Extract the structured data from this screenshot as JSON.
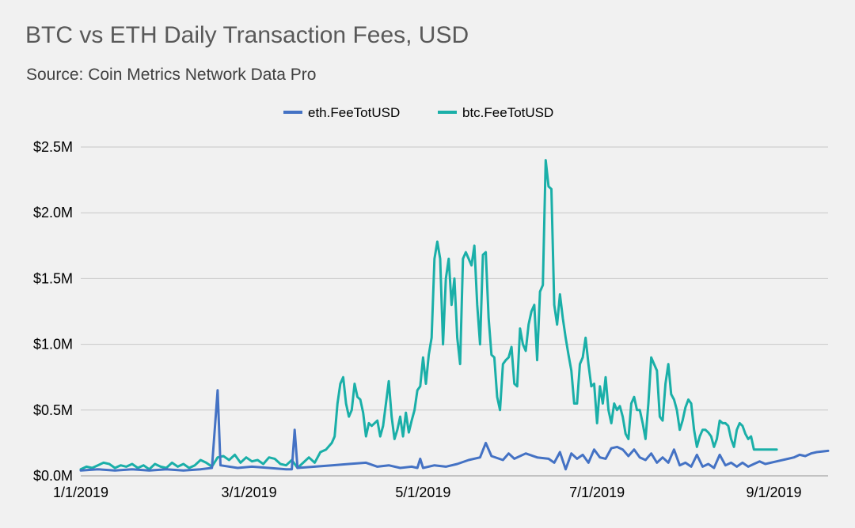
{
  "chart_data": {
    "type": "line",
    "title": "BTC vs ETH Daily Transaction Fees, USD",
    "subtitle": "Source: Coin Metrics Network Data Pro",
    "xlabel": "",
    "ylabel": "",
    "x_range": [
      "1/1/2019",
      "9/12/2019"
    ],
    "x_tick_labels": [
      "1/1/2019",
      "3/1/2019",
      "5/1/2019",
      "7/1/2019",
      "9/1/2019"
    ],
    "x_tick_days": [
      0,
      59,
      120,
      181,
      243
    ],
    "ylim": [
      0,
      2.5
    ],
    "y_units": "$M",
    "y_ticks": [
      0,
      0.5,
      1.0,
      1.5,
      2.0,
      2.5
    ],
    "y_tick_labels": [
      "$0.0M",
      "$0.5M",
      "$1.0M",
      "$1.5M",
      "$2.0M",
      "$2.5M"
    ],
    "grid": true,
    "legend_position": "top-center",
    "series": [
      {
        "name": "eth.FeeTotUSD",
        "color": "#4472c4",
        "points": [
          [
            0,
            0.04
          ],
          [
            6,
            0.05
          ],
          [
            12,
            0.04
          ],
          [
            18,
            0.05
          ],
          [
            24,
            0.04
          ],
          [
            30,
            0.05
          ],
          [
            36,
            0.04
          ],
          [
            42,
            0.05
          ],
          [
            46,
            0.06
          ],
          [
            48,
            0.65
          ],
          [
            49,
            0.08
          ],
          [
            55,
            0.06
          ],
          [
            60,
            0.07
          ],
          [
            66,
            0.06
          ],
          [
            72,
            0.05
          ],
          [
            74,
            0.05
          ],
          [
            75,
            0.35
          ],
          [
            76,
            0.06
          ],
          [
            82,
            0.07
          ],
          [
            88,
            0.08
          ],
          [
            94,
            0.09
          ],
          [
            100,
            0.1
          ],
          [
            104,
            0.07
          ],
          [
            108,
            0.08
          ],
          [
            112,
            0.06
          ],
          [
            116,
            0.07
          ],
          [
            118,
            0.06
          ],
          [
            119,
            0.13
          ],
          [
            120,
            0.06
          ],
          [
            124,
            0.08
          ],
          [
            128,
            0.07
          ],
          [
            132,
            0.09
          ],
          [
            136,
            0.12
          ],
          [
            140,
            0.14
          ],
          [
            142,
            0.25
          ],
          [
            144,
            0.15
          ],
          [
            148,
            0.12
          ],
          [
            150,
            0.17
          ],
          [
            152,
            0.13
          ],
          [
            156,
            0.17
          ],
          [
            160,
            0.14
          ],
          [
            164,
            0.13
          ],
          [
            166,
            0.1
          ],
          [
            168,
            0.18
          ],
          [
            170,
            0.05
          ],
          [
            172,
            0.17
          ],
          [
            174,
            0.13
          ],
          [
            176,
            0.16
          ],
          [
            178,
            0.1
          ],
          [
            180,
            0.2
          ],
          [
            182,
            0.14
          ],
          [
            184,
            0.13
          ],
          [
            186,
            0.21
          ],
          [
            188,
            0.22
          ],
          [
            190,
            0.2
          ],
          [
            192,
            0.15
          ],
          [
            194,
            0.2
          ],
          [
            196,
            0.14
          ],
          [
            198,
            0.12
          ],
          [
            200,
            0.17
          ],
          [
            202,
            0.1
          ],
          [
            204,
            0.14
          ],
          [
            206,
            0.1
          ],
          [
            208,
            0.2
          ],
          [
            210,
            0.08
          ],
          [
            212,
            0.1
          ],
          [
            214,
            0.07
          ],
          [
            216,
            0.16
          ],
          [
            218,
            0.07
          ],
          [
            220,
            0.09
          ],
          [
            222,
            0.06
          ],
          [
            224,
            0.16
          ],
          [
            226,
            0.08
          ],
          [
            228,
            0.1
          ],
          [
            230,
            0.07
          ],
          [
            232,
            0.1
          ],
          [
            234,
            0.07
          ],
          [
            236,
            0.09
          ],
          [
            238,
            0.11
          ],
          [
            240,
            0.09
          ],
          [
            244,
            0.11
          ],
          [
            248,
            0.13
          ],
          [
            250,
            0.14
          ],
          [
            252,
            0.16
          ],
          [
            254,
            0.15
          ],
          [
            256,
            0.17
          ],
          [
            258,
            0.18
          ],
          [
            262,
            0.19
          ]
        ]
      },
      {
        "name": "btc.FeeTotUSD",
        "color": "#1aafa8",
        "points": [
          [
            0,
            0.05
          ],
          [
            2,
            0.07
          ],
          [
            4,
            0.06
          ],
          [
            6,
            0.08
          ],
          [
            8,
            0.1
          ],
          [
            10,
            0.09
          ],
          [
            12,
            0.06
          ],
          [
            14,
            0.08
          ],
          [
            16,
            0.07
          ],
          [
            18,
            0.09
          ],
          [
            20,
            0.06
          ],
          [
            22,
            0.08
          ],
          [
            24,
            0.05
          ],
          [
            26,
            0.09
          ],
          [
            28,
            0.07
          ],
          [
            30,
            0.06
          ],
          [
            32,
            0.1
          ],
          [
            34,
            0.07
          ],
          [
            36,
            0.09
          ],
          [
            38,
            0.06
          ],
          [
            40,
            0.08
          ],
          [
            42,
            0.12
          ],
          [
            44,
            0.1
          ],
          [
            46,
            0.07
          ],
          [
            48,
            0.14
          ],
          [
            50,
            0.15
          ],
          [
            52,
            0.12
          ],
          [
            54,
            0.16
          ],
          [
            56,
            0.1
          ],
          [
            58,
            0.14
          ],
          [
            60,
            0.11
          ],
          [
            62,
            0.12
          ],
          [
            64,
            0.09
          ],
          [
            66,
            0.14
          ],
          [
            68,
            0.13
          ],
          [
            70,
            0.09
          ],
          [
            72,
            0.08
          ],
          [
            74,
            0.12
          ],
          [
            76,
            0.06
          ],
          [
            78,
            0.1
          ],
          [
            80,
            0.14
          ],
          [
            82,
            0.1
          ],
          [
            84,
            0.18
          ],
          [
            86,
            0.2
          ],
          [
            88,
            0.25
          ],
          [
            89,
            0.3
          ],
          [
            90,
            0.55
          ],
          [
            91,
            0.7
          ],
          [
            92,
            0.75
          ],
          [
            93,
            0.55
          ],
          [
            94,
            0.45
          ],
          [
            95,
            0.5
          ],
          [
            96,
            0.7
          ],
          [
            97,
            0.6
          ],
          [
            98,
            0.58
          ],
          [
            99,
            0.48
          ],
          [
            100,
            0.3
          ],
          [
            101,
            0.4
          ],
          [
            102,
            0.38
          ],
          [
            104,
            0.42
          ],
          [
            105,
            0.3
          ],
          [
            106,
            0.38
          ],
          [
            108,
            0.72
          ],
          [
            109,
            0.45
          ],
          [
            110,
            0.28
          ],
          [
            111,
            0.35
          ],
          [
            112,
            0.45
          ],
          [
            113,
            0.3
          ],
          [
            114,
            0.48
          ],
          [
            115,
            0.33
          ],
          [
            116,
            0.42
          ],
          [
            117,
            0.5
          ],
          [
            118,
            0.65
          ],
          [
            119,
            0.68
          ],
          [
            120,
            0.9
          ],
          [
            121,
            0.7
          ],
          [
            122,
            0.92
          ],
          [
            123,
            1.05
          ],
          [
            124,
            1.65
          ],
          [
            125,
            1.78
          ],
          [
            126,
            1.65
          ],
          [
            127,
            1.0
          ],
          [
            128,
            1.5
          ],
          [
            129,
            1.65
          ],
          [
            130,
            1.3
          ],
          [
            131,
            1.5
          ],
          [
            132,
            1.05
          ],
          [
            133,
            0.85
          ],
          [
            134,
            1.65
          ],
          [
            135,
            1.7
          ],
          [
            136,
            1.65
          ],
          [
            137,
            1.6
          ],
          [
            138,
            1.75
          ],
          [
            139,
            1.3
          ],
          [
            140,
            1.0
          ],
          [
            141,
            1.68
          ],
          [
            142,
            1.7
          ],
          [
            143,
            1.2
          ],
          [
            144,
            0.92
          ],
          [
            145,
            0.9
          ],
          [
            146,
            0.6
          ],
          [
            147,
            0.5
          ],
          [
            148,
            0.85
          ],
          [
            149,
            0.88
          ],
          [
            150,
            0.9
          ],
          [
            151,
            0.98
          ],
          [
            152,
            0.7
          ],
          [
            153,
            0.68
          ],
          [
            154,
            1.12
          ],
          [
            155,
            1.0
          ],
          [
            156,
            0.95
          ],
          [
            157,
            1.15
          ],
          [
            158,
            1.25
          ],
          [
            159,
            1.3
          ],
          [
            160,
            0.88
          ],
          [
            161,
            1.4
          ],
          [
            162,
            1.45
          ],
          [
            163,
            2.4
          ],
          [
            164,
            2.2
          ],
          [
            165,
            2.18
          ],
          [
            166,
            1.3
          ],
          [
            167,
            1.15
          ],
          [
            168,
            1.38
          ],
          [
            169,
            1.2
          ],
          [
            170,
            1.05
          ],
          [
            171,
            0.92
          ],
          [
            172,
            0.8
          ],
          [
            173,
            0.55
          ],
          [
            174,
            0.55
          ],
          [
            175,
            0.85
          ],
          [
            176,
            0.9
          ],
          [
            177,
            1.05
          ],
          [
            178,
            0.85
          ],
          [
            179,
            0.68
          ],
          [
            180,
            0.7
          ],
          [
            181,
            0.4
          ],
          [
            182,
            0.68
          ],
          [
            183,
            0.55
          ],
          [
            184,
            0.75
          ],
          [
            185,
            0.5
          ],
          [
            186,
            0.4
          ],
          [
            187,
            0.55
          ],
          [
            188,
            0.5
          ],
          [
            189,
            0.53
          ],
          [
            190,
            0.45
          ],
          [
            191,
            0.32
          ],
          [
            192,
            0.28
          ],
          [
            193,
            0.55
          ],
          [
            194,
            0.6
          ],
          [
            195,
            0.5
          ],
          [
            196,
            0.5
          ],
          [
            197,
            0.4
          ],
          [
            198,
            0.28
          ],
          [
            199,
            0.55
          ],
          [
            200,
            0.9
          ],
          [
            201,
            0.85
          ],
          [
            202,
            0.8
          ],
          [
            203,
            0.45
          ],
          [
            204,
            0.42
          ],
          [
            205,
            0.7
          ],
          [
            206,
            0.85
          ],
          [
            207,
            0.62
          ],
          [
            208,
            0.58
          ],
          [
            209,
            0.5
          ],
          [
            210,
            0.35
          ],
          [
            211,
            0.42
          ],
          [
            212,
            0.52
          ],
          [
            213,
            0.58
          ],
          [
            214,
            0.55
          ],
          [
            215,
            0.35
          ],
          [
            216,
            0.22
          ],
          [
            217,
            0.3
          ],
          [
            218,
            0.35
          ],
          [
            219,
            0.35
          ],
          [
            220,
            0.33
          ],
          [
            221,
            0.3
          ],
          [
            222,
            0.22
          ],
          [
            223,
            0.28
          ],
          [
            224,
            0.42
          ],
          [
            225,
            0.4
          ],
          [
            226,
            0.4
          ],
          [
            227,
            0.38
          ],
          [
            228,
            0.28
          ],
          [
            229,
            0.22
          ],
          [
            230,
            0.35
          ],
          [
            231,
            0.4
          ],
          [
            232,
            0.38
          ],
          [
            233,
            0.32
          ],
          [
            234,
            0.28
          ],
          [
            235,
            0.3
          ],
          [
            236,
            0.2
          ],
          [
            244,
            0.2
          ]
        ]
      }
    ]
  }
}
